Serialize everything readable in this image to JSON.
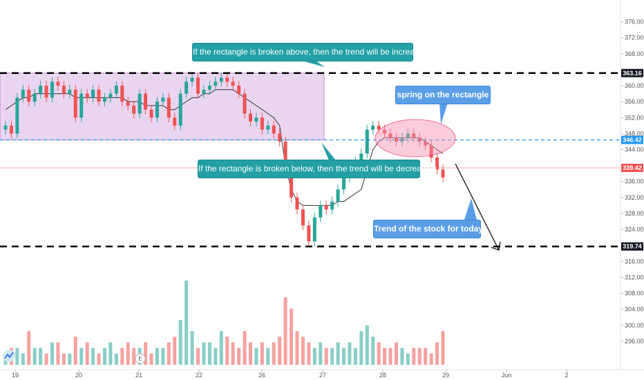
{
  "chart_data": {
    "type": "candlestick",
    "title": "",
    "x_tick_labels": [
      "19",
      "20",
      "21",
      "22",
      "26",
      "27",
      "28",
      "29",
      "Jun",
      "2"
    ],
    "y_tick_labels": [
      376,
      372,
      368,
      360,
      356,
      352,
      348,
      344,
      336,
      332,
      328,
      324,
      316,
      312,
      308,
      304,
      300,
      296
    ],
    "ylim": [
      292,
      378
    ],
    "price_labels": {
      "upper_level": "363.16",
      "mid_level": "346.42",
      "last_price": "339.42",
      "lower_level": "319.74"
    },
    "levels": {
      "upper": 363.16,
      "mid": 346.42,
      "last": 339.42,
      "lower": 319.74
    },
    "rectangle": {
      "from": "19",
      "to": "27",
      "top": 363.16,
      "bottom": 346.42,
      "color": "#d9b3e6"
    },
    "ellipse_label": "spring on the rectangle",
    "series": [
      {
        "values": [
          350,
          348,
          357,
          359,
          356,
          358,
          360,
          357,
          361,
          360,
          358,
          359,
          352,
          358,
          357,
          359,
          356,
          357,
          358,
          360,
          356,
          355,
          353,
          358,
          354,
          352,
          356,
          357,
          352,
          350,
          358,
          361,
          362,
          358,
          359,
          360,
          361,
          362,
          361,
          360,
          358,
          353,
          351,
          352,
          349,
          350,
          348,
          346,
          338,
          332,
          329,
          325,
          321,
          327,
          330,
          329,
          331,
          334,
          337,
          339,
          341,
          343,
          349,
          350,
          349,
          348,
          347,
          346,
          347,
          348,
          347,
          346,
          345,
          342,
          339,
          337
        ]
      }
    ],
    "moving_average": [
      354,
      355,
      356,
      357,
      357,
      358,
      358,
      358,
      358,
      358,
      358,
      358,
      357,
      357,
      357,
      357,
      357,
      357,
      357,
      357,
      357,
      356,
      356,
      356,
      355,
      355,
      355,
      355,
      354,
      354,
      355,
      356,
      357,
      357,
      358,
      358,
      359,
      359,
      359,
      359,
      358,
      357,
      356,
      355,
      354,
      353,
      352,
      350,
      340,
      334,
      331,
      330,
      330,
      330,
      330,
      330,
      330,
      331,
      331,
      332,
      333,
      334,
      339,
      344,
      346,
      347,
      347,
      347,
      347,
      347,
      347,
      347,
      346,
      345,
      344,
      343
    ],
    "volume": [
      2,
      3,
      3,
      2,
      6,
      3,
      3,
      2,
      4,
      4,
      2,
      2,
      5,
      3,
      4,
      3,
      2,
      3,
      4,
      2,
      3,
      4,
      3,
      3,
      4,
      2,
      3,
      3,
      4,
      5,
      8,
      15,
      6,
      3,
      4,
      4,
      3,
      6,
      5,
      4,
      3,
      6,
      4,
      3,
      4,
      3,
      4,
      5,
      12,
      10,
      6,
      5,
      4,
      3,
      4,
      3,
      3,
      4,
      3,
      4,
      3,
      6,
      7,
      5,
      4,
      3,
      3,
      4,
      3,
      2,
      3,
      3,
      3,
      2,
      4,
      6
    ],
    "volume_ylim": [
      0,
      16
    ],
    "icon": "tradingview-logo-icon",
    "earnings_marker": "E",
    "colors": {
      "up": "#26a69a",
      "down": "#ef5350",
      "rect_border": "#9c27b0",
      "ma": "#333333"
    }
  },
  "annotations": {
    "broken_above": "If the rectangle is broken above, then the trend will be increasing",
    "broken_below": "If the rectangle is broken below, then the trend will be decreasing",
    "spring": "spring on the rectangle",
    "trend_today": "Trend of the stock for today"
  }
}
